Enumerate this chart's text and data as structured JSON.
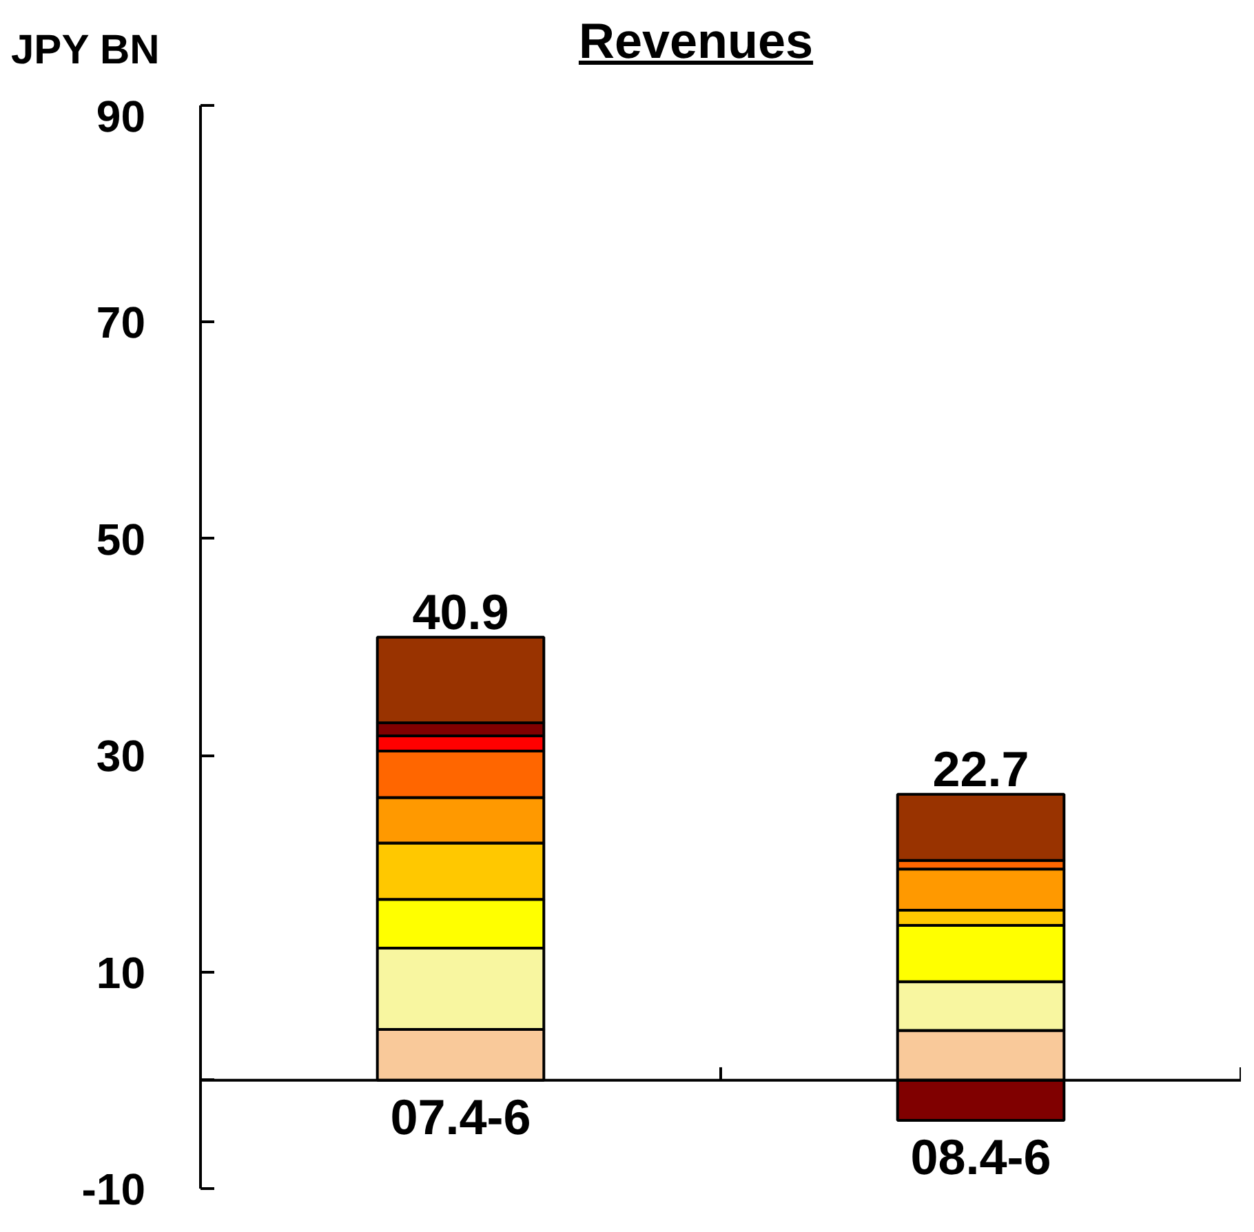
{
  "chart_data": {
    "type": "bar",
    "title": "Revenues",
    "ylabel": "JPY BN",
    "stacked": true,
    "categories": [
      "07.4-6",
      "08.4-6"
    ],
    "series": [
      {
        "color": "#f9c99a",
        "values": [
          4.7,
          4.6
        ]
      },
      {
        "color": "#f8f6a0",
        "values": [
          7.5,
          4.5
        ]
      },
      {
        "color": "#ffff00",
        "values": [
          4.5,
          5.2
        ]
      },
      {
        "color": "#ffc800",
        "values": [
          5.2,
          1.4
        ]
      },
      {
        "color": "#ff9900",
        "values": [
          4.2,
          3.8
        ]
      },
      {
        "color": "#ff6600",
        "values": [
          4.3,
          0.8
        ]
      },
      {
        "color": "#ff0000",
        "values": [
          1.4,
          0
        ]
      },
      {
        "color": "#800000",
        "values": [
          1.2,
          -3.7
        ]
      },
      {
        "color": "#993300",
        "values": [
          7.9,
          6.1
        ]
      }
    ],
    "totals": [
      "40.9",
      "22.7"
    ],
    "ylim": [
      -10,
      90
    ],
    "yticks": [
      90,
      70,
      50,
      30,
      10,
      {
        "value": 0,
        "label": null
      },
      -10
    ]
  }
}
